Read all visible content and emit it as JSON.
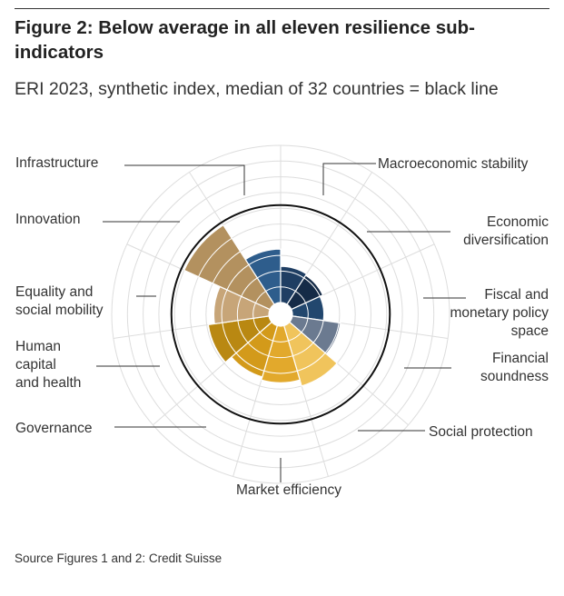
{
  "header": {
    "title": "Figure 2: Below average in all eleven resilience sub-indicators",
    "subtitle": "ERI 2023, synthetic index, median of 32 countries = black line"
  },
  "footer": {
    "source": "Source Figures 1 and 2: Credit Suisse"
  },
  "colors": {
    "grid": "#dddddd",
    "median_line": "#111111",
    "leader_line": "#333333",
    "slice_separator": "#ffffff"
  },
  "chart_data": {
    "type": "polar-bar",
    "title": "Figure 2: Below average in all eleven resilience sub-indicators",
    "subtitle": "ERI 2023, synthetic index, median of 32 countries = black line",
    "scale_max": 10,
    "rings": [
      1,
      2,
      3,
      4,
      5,
      6,
      7,
      8,
      9,
      10
    ],
    "median": 6.2,
    "categories": [
      {
        "label": "Macroeconomic stability",
        "lines": [
          "Macroeconomic stability"
        ],
        "value": 3.4,
        "color": "#2e5d8c",
        "anchor": "start"
      },
      {
        "label": "Economic diversification",
        "lines": [
          "Economic",
          "diversification"
        ],
        "value": 2.3,
        "color": "#1f3e63",
        "anchor": "end"
      },
      {
        "label": "Fiscal and monetary policy space",
        "lines": [
          "Fiscal and",
          "monetary policy",
          "space"
        ],
        "value": 2.2,
        "color": "#152b47",
        "anchor": "end"
      },
      {
        "label": "Financial soundness",
        "lines": [
          "Financial",
          "soundness"
        ],
        "value": 2.0,
        "color": "#22476e",
        "anchor": "end"
      },
      {
        "label": "Social protection",
        "lines": [
          "Social protection"
        ],
        "value": 3.1,
        "color": "#6b7a90",
        "anchor": "start"
      },
      {
        "label": "Market efficiency",
        "lines": [
          "Market efficiency"
        ],
        "value": 4.0,
        "color": "#f0c45c",
        "anchor": "middle"
      },
      {
        "label": "Governance",
        "lines": [
          "Governance"
        ],
        "value": 3.6,
        "color": "#e2a92c",
        "anchor": "start"
      },
      {
        "label": "Human capital and health",
        "lines": [
          "Human",
          "capital",
          "and health"
        ],
        "value": 3.4,
        "color": "#d39a1a",
        "anchor": "start"
      },
      {
        "label": "Equality and social mobility",
        "lines": [
          "Equality and",
          "social mobility"
        ],
        "value": 3.9,
        "color": "#b98812",
        "anchor": "start"
      },
      {
        "label": "Innovation",
        "lines": [
          "Innovation"
        ],
        "value": 3.5,
        "color": "#c7a578",
        "anchor": "start"
      },
      {
        "label": "Infrastructure",
        "lines": [
          "Infrastructure"
        ],
        "value": 6.0,
        "color": "#b3915f",
        "anchor": "start"
      }
    ]
  }
}
